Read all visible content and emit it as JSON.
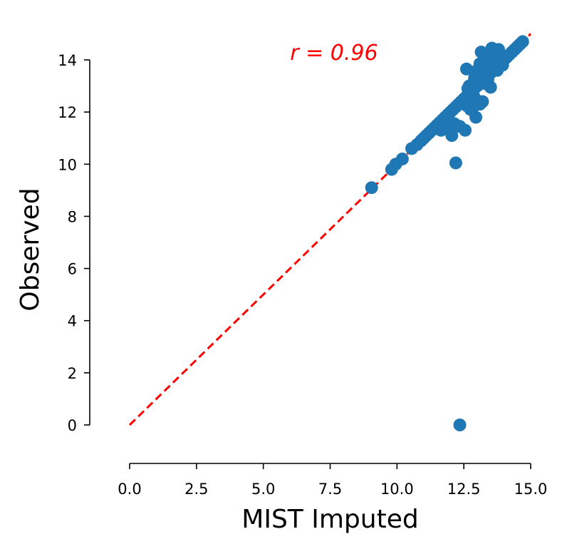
{
  "chart_data": {
    "type": "scatter",
    "title": "",
    "xlabel": "MIST Imputed",
    "ylabel": "Observed",
    "xlim": [
      0,
      15
    ],
    "ylim": [
      -1.5,
      15
    ],
    "x_ticks": [
      0.0,
      2.5,
      5.0,
      7.5,
      10.0,
      12.5,
      15.0
    ],
    "x_tick_labels": [
      "0.0",
      "2.5",
      "5.0",
      "7.5",
      "10.0",
      "12.5",
      "15.0"
    ],
    "y_ticks": [
      0,
      2,
      4,
      6,
      8,
      10,
      12,
      14
    ],
    "y_tick_labels": [
      "0",
      "2",
      "4",
      "6",
      "8",
      "10",
      "12",
      "14"
    ],
    "grid": false,
    "annotation": {
      "text": "r = 0.96",
      "x": 6.0,
      "y": 14.0,
      "color": "#ff0000"
    },
    "reference_line": {
      "x": [
        0,
        15
      ],
      "y": [
        0,
        15
      ],
      "style": "dashed",
      "color": "#ff0000"
    },
    "point_color": "#1f77b4",
    "points": [
      [
        9.05,
        9.1
      ],
      [
        9.8,
        9.8
      ],
      [
        9.95,
        10.0
      ],
      [
        10.2,
        10.2
      ],
      [
        10.55,
        10.6
      ],
      [
        10.75,
        10.75
      ],
      [
        10.9,
        10.9
      ],
      [
        11.0,
        11.0
      ],
      [
        11.1,
        11.1
      ],
      [
        11.2,
        11.2
      ],
      [
        11.3,
        11.3
      ],
      [
        11.4,
        11.4
      ],
      [
        11.5,
        11.5
      ],
      [
        11.6,
        11.6
      ],
      [
        11.7,
        11.7
      ],
      [
        11.8,
        11.8
      ],
      [
        11.9,
        11.9
      ],
      [
        12.0,
        12.0
      ],
      [
        12.1,
        12.1
      ],
      [
        12.2,
        12.2
      ],
      [
        12.3,
        12.3
      ],
      [
        12.4,
        12.4
      ],
      [
        12.5,
        12.5
      ],
      [
        12.6,
        12.6
      ],
      [
        12.7,
        12.7
      ],
      [
        12.8,
        12.8
      ],
      [
        12.9,
        12.9
      ],
      [
        13.0,
        13.0
      ],
      [
        13.1,
        13.1
      ],
      [
        13.2,
        13.2
      ],
      [
        13.3,
        13.3
      ],
      [
        13.4,
        13.4
      ],
      [
        13.5,
        13.5
      ],
      [
        13.6,
        13.6
      ],
      [
        13.7,
        13.7
      ],
      [
        13.8,
        13.8
      ],
      [
        13.9,
        13.9
      ],
      [
        14.0,
        14.0
      ],
      [
        14.1,
        14.1
      ],
      [
        14.2,
        14.2
      ],
      [
        14.3,
        14.3
      ],
      [
        14.4,
        14.4
      ],
      [
        14.5,
        14.5
      ],
      [
        14.6,
        14.6
      ],
      [
        14.7,
        14.7
      ],
      [
        11.65,
        11.3
      ],
      [
        11.85,
        11.5
      ],
      [
        12.05,
        11.1
      ],
      [
        12.15,
        11.55
      ],
      [
        12.35,
        11.45
      ],
      [
        12.55,
        11.3
      ],
      [
        12.2,
        10.05
      ],
      [
        12.35,
        0.0
      ],
      [
        12.75,
        12.1
      ],
      [
        12.95,
        11.8
      ],
      [
        13.1,
        12.3
      ],
      [
        13.2,
        12.4
      ],
      [
        12.9,
        12.55
      ],
      [
        12.6,
        12.25
      ],
      [
        12.85,
        12.2
      ],
      [
        13.5,
        12.95
      ],
      [
        13.4,
        13.25
      ],
      [
        13.25,
        13.1
      ],
      [
        12.7,
        13.0
      ],
      [
        12.65,
        12.9
      ],
      [
        12.6,
        13.65
      ],
      [
        12.95,
        13.55
      ],
      [
        13.1,
        13.85
      ],
      [
        13.15,
        14.3
      ],
      [
        13.3,
        14.15
      ],
      [
        13.45,
        14.0
      ],
      [
        13.55,
        14.45
      ],
      [
        13.7,
        14.3
      ],
      [
        13.8,
        14.4
      ],
      [
        13.4,
        13.7
      ],
      [
        13.6,
        13.7
      ],
      [
        13.75,
        13.6
      ],
      [
        12.9,
        13.3
      ],
      [
        13.0,
        13.6
      ],
      [
        13.2,
        13.4
      ],
      [
        13.35,
        13.5
      ],
      [
        13.5,
        14.2
      ],
      [
        13.85,
        14.0
      ],
      [
        13.95,
        13.8
      ],
      [
        12.85,
        13.1
      ]
    ]
  }
}
